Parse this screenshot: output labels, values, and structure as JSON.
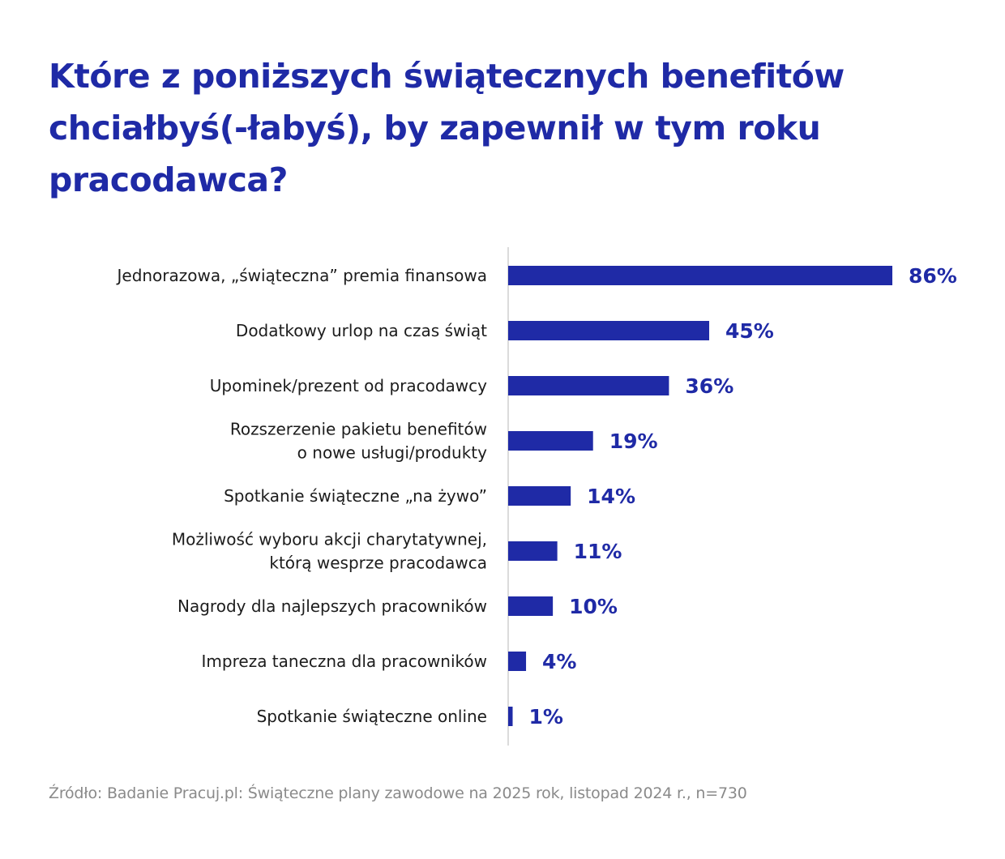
{
  "title": "Które z poniższych świątecznych benefitów chciałbyś(-łabyś), by zapewnił w tym roku pracodawca?",
  "source": "Źródło: Badanie Pracuj.pl: Świąteczne plany zawodowe na 2025 rok, listopad 2024 r., n=730",
  "colors": {
    "bar": "#1f2aa6",
    "title": "#1f2aa6",
    "axis": "#cfcfcf",
    "text": "#1c1c1c",
    "source": "#8a8a8a"
  },
  "chart_data": {
    "type": "bar",
    "orientation": "horizontal",
    "categories": [
      [
        "Jednorazowa, „świąteczna” premia finansowa"
      ],
      [
        "Dodatkowy urlop na czas świąt"
      ],
      [
        "Upominek/prezent od pracodawcy"
      ],
      [
        "Rozszerzenie pakietu benefitów",
        "o nowe usługi/produkty"
      ],
      [
        "Spotkanie świąteczne „na żywo”"
      ],
      [
        "Możliwość wyboru akcji charytatywnej,",
        "którą wesprze pracodawca"
      ],
      [
        "Nagrody dla najlepszych pracowników"
      ],
      [
        "Impreza taneczna dla pracowników"
      ],
      [
        "Spotkanie świąteczne online"
      ]
    ],
    "values": [
      86,
      45,
      36,
      19,
      14,
      11,
      10,
      4,
      1
    ],
    "value_labels": [
      "86%",
      "45%",
      "36%",
      "19%",
      "14%",
      "11%",
      "10%",
      "4%",
      "1%"
    ],
    "unit": "%",
    "xlim": [
      0,
      86
    ],
    "grid": false,
    "legend": "none"
  }
}
